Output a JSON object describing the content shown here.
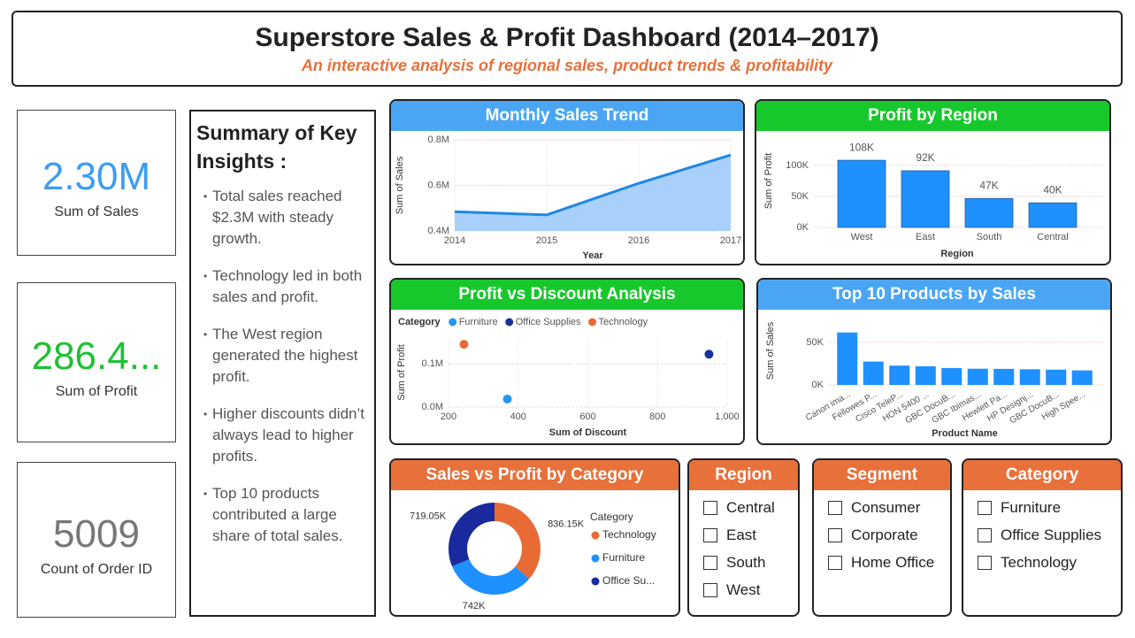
{
  "header": {
    "title": "Superstore Sales & Profit Dashboard (2014–2017)",
    "subtitle": "An interactive analysis of regional sales, product trends & profitability"
  },
  "kpis": [
    {
      "value": "2.30M",
      "label": "Sum of Sales",
      "color": "#3d9df0"
    },
    {
      "value": "286.4...",
      "label": "Sum of Profit",
      "color": "#1ec132"
    },
    {
      "value": "5009",
      "label": "Count of Order ID",
      "color": "#777777"
    }
  ],
  "summary": {
    "title": "Summary of Key Insights :",
    "points": [
      "Total sales reached $2.3M with steady growth.",
      "Technology led in both sales and profit.",
      "The West region generated the highest profit.",
      "Higher discounts didn’t always lead to higher profits.",
      "Top 10 products contributed a large share of total sales."
    ]
  },
  "chart_data": [
    {
      "type": "area",
      "title": "Monthly Sales Trend",
      "xlabel": "Year",
      "ylabel": "Sum of Sales",
      "x": [
        2014,
        2015,
        2016,
        2017
      ],
      "values": [
        484247,
        470533,
        609206,
        733215
      ],
      "color": "#1e88e5",
      "fill": "#a8d0fa",
      "xlim": [
        2014,
        2017
      ],
      "xticks": [
        2014,
        2015,
        2016,
        2017
      ],
      "ylim": [
        400000,
        800000
      ],
      "yticks": [
        {
          "value": 400000,
          "label": "0.4M"
        },
        {
          "value": 600000,
          "label": "0.6M"
        },
        {
          "value": 800000,
          "label": "0.8M"
        }
      ],
      "grid": true
    },
    {
      "type": "bar",
      "title": "Profit by Region",
      "xlabel": "Region",
      "ylabel": "Sum of Profit",
      "categories": [
        "West",
        "East",
        "South",
        "Central"
      ],
      "values": [
        108418,
        91523,
        46749,
        39706
      ],
      "value_labels": [
        "108K",
        "92K",
        "47K",
        "40K"
      ],
      "color": "#1e90ff",
      "ylim": [
        0,
        150000
      ],
      "yticks": [
        {
          "value": 0,
          "label": "0K"
        },
        {
          "value": 50000,
          "label": "50K"
        },
        {
          "value": 100000,
          "label": "100K"
        }
      ],
      "grid": true
    },
    {
      "type": "scatter",
      "title": "Profit vs Discount Analysis",
      "xlabel": "Sum of Discount",
      "ylabel": "Sum of Profit",
      "legend_title": "Category",
      "series": [
        {
          "name": "Furniture",
          "color": "#2196f3",
          "x": [
            368.89
          ],
          "values": [
            18451
          ]
        },
        {
          "name": "Office Supplies",
          "color": "#1a2fa0",
          "x": [
            947.8
          ],
          "values": [
            122491
          ]
        },
        {
          "name": "Technology",
          "color": "#e86b35",
          "x": [
            244.4
          ],
          "values": [
            145455
          ]
        }
      ],
      "xlim": [
        200,
        1000
      ],
      "xticks": [
        200,
        400,
        600,
        800,
        {
          "value": 1000,
          "label": "1,000"
        }
      ],
      "ylim": [
        0,
        160000
      ],
      "yticks": [
        {
          "value": 0,
          "label": "0.0M"
        },
        {
          "value": 100000,
          "label": "0.1M"
        }
      ],
      "grid": true
    },
    {
      "type": "bar",
      "title": "Top 10 Products by Sales",
      "xlabel": "Product Name",
      "ylabel": "Sum of Sales",
      "categories": [
        "Canon ima...",
        "Fellowes P...",
        "Cisco TeleP...",
        "HON 5400 ...",
        "GBC DocuB...",
        "GBC Ibimas...",
        "Hewlett Pa...",
        "HP Designj...",
        "GBC DocuB...",
        "High Spee..."
      ],
      "values": [
        61600,
        27453,
        22638,
        21870,
        19823,
        19024,
        18840,
        18375,
        17965,
        17030
      ],
      "color": "#1e90ff",
      "ylim": [
        0,
        80000
      ],
      "yticks": [
        {
          "value": 0,
          "label": "0K"
        },
        {
          "value": 50000,
          "label": "50K"
        }
      ],
      "grid": true
    },
    {
      "type": "donut",
      "title": "Sales vs Profit by Category",
      "legend_title": "Category",
      "categories": [
        "Technology",
        "Furniture",
        "Office Su..."
      ],
      "values": [
        836154,
        742000,
        719047
      ],
      "value_labels": [
        "836.15K",
        "742K",
        "719.05K"
      ],
      "colors": [
        "#e86b35",
        "#1e90ff",
        "#1a2a9c"
      ]
    }
  ],
  "slicers": [
    {
      "title": "Region",
      "items": [
        "Central",
        "East",
        "South",
        "West"
      ]
    },
    {
      "title": "Segment",
      "items": [
        "Consumer",
        "Corporate",
        "Home Office"
      ]
    },
    {
      "title": "Category",
      "items": [
        "Furniture",
        "Office Supplies",
        "Technology"
      ]
    }
  ]
}
